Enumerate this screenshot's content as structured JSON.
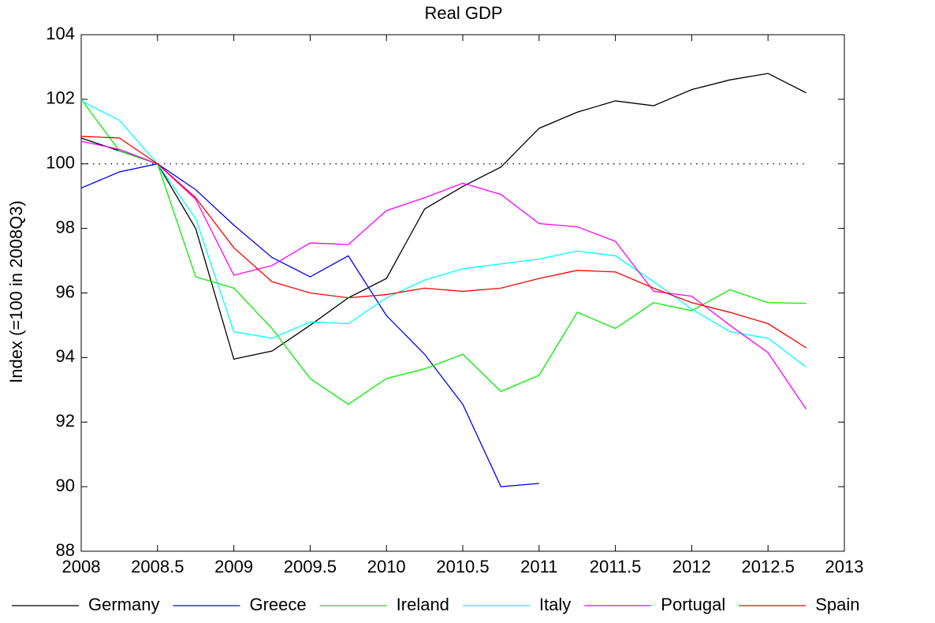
{
  "chart_data": {
    "type": "line",
    "title": "Real GDP",
    "y_label": "Index (=100 in 2008Q3)",
    "x": [
      2008,
      2008.25,
      2008.5,
      2008.75,
      2009,
      2009.25,
      2009.5,
      2009.75,
      2010,
      2010.25,
      2010.5,
      2010.75,
      2011,
      2011.25,
      2011.5,
      2011.75,
      2012,
      2012.25,
      2012.5,
      2012.75
    ],
    "series": [
      {
        "name": "Germany",
        "color": "#000000",
        "values": [
          100.8,
          100.4,
          100,
          98,
          93.95,
          94.2,
          95,
          95.85,
          96.45,
          98.6,
          99.3,
          99.9,
          101.1,
          101.6,
          101.95,
          101.8,
          102.3,
          102.6,
          102.8,
          102.2
        ]
      },
      {
        "name": "Greece",
        "color": "#0000ff",
        "values": [
          99.25,
          99.75,
          100,
          99.2,
          98.1,
          97.1,
          96.5,
          97.15,
          95.3,
          94.1,
          92.55,
          90,
          90.1,
          null,
          null,
          null,
          null,
          null,
          null,
          null
        ]
      },
      {
        "name": "Ireland",
        "color": "#00ee00",
        "values": [
          102,
          100.4,
          100,
          96.5,
          96.15,
          94.9,
          93.35,
          92.55,
          93.35,
          93.65,
          94.1,
          92.95,
          93.45,
          95.4,
          94.9,
          95.7,
          95.45,
          96.1,
          95.7,
          95.68
        ]
      },
      {
        "name": "Italy",
        "color": "#00ffff",
        "values": [
          101.95,
          101.35,
          100,
          98.3,
          94.8,
          94.6,
          95.1,
          95.05,
          95.85,
          96.4,
          96.75,
          96.9,
          97.05,
          97.3,
          97.15,
          96.35,
          95.5,
          94.8,
          94.6,
          93.7
        ]
      },
      {
        "name": "Portugal",
        "color": "#ff00ff",
        "values": [
          100.7,
          100.45,
          100,
          98.9,
          96.55,
          96.85,
          97.55,
          97.5,
          98.55,
          98.95,
          99.4,
          99.05,
          98.15,
          98.05,
          97.6,
          96.05,
          95.9,
          95,
          94.15,
          92.4
        ]
      },
      {
        "name": "Spain",
        "color": "#ff0000",
        "values": [
          100.85,
          100.8,
          100,
          98.95,
          97.4,
          96.35,
          96,
          95.85,
          95.95,
          96.15,
          96.05,
          96.15,
          96.45,
          96.7,
          96.65,
          96.15,
          95.7,
          95.4,
          95.05,
          94.3
        ]
      }
    ],
    "hline": 100,
    "xlim": [
      2008,
      2013
    ],
    "xticks": [
      2008,
      2008.5,
      2009,
      2009.5,
      2010,
      2010.5,
      2011,
      2011.5,
      2012,
      2012.5,
      2013
    ],
    "ylim": [
      88,
      104
    ],
    "yticks": [
      88,
      90,
      92,
      94,
      96,
      98,
      100,
      102,
      104
    ],
    "grid": false,
    "legend": "bottom"
  }
}
